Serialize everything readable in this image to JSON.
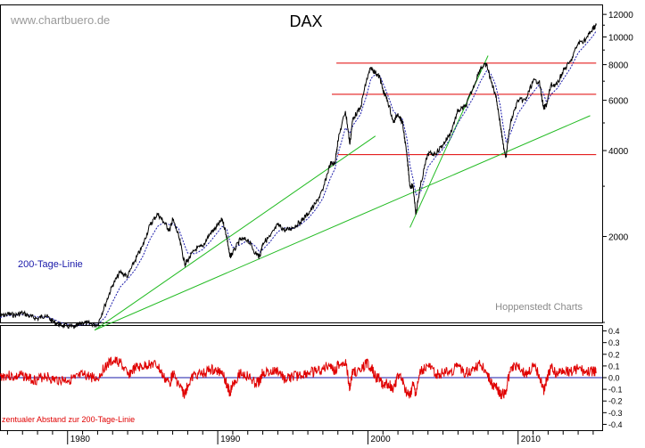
{
  "watermark": "www.chartbuero.de",
  "credit": "Hoppenstedt Charts",
  "chart_data": [
    {
      "type": "line",
      "title": "DAX",
      "yscale": "log",
      "xlim": [
        1975.5,
        2015.6
      ],
      "ylim": [
        1000,
        13000
      ],
      "y_ticks": [
        2000,
        4000,
        6000,
        8000,
        10000,
        12000
      ],
      "x_ticks": [
        1980,
        1990,
        2000,
        2010
      ],
      "grid": false,
      "series": [
        {
          "name": "",
          "color": "#000000",
          "x": [
            1975.5,
            1976.0,
            1976.5,
            1977.0,
            1977.5,
            1978.0,
            1978.5,
            1979.0,
            1979.5,
            1980.0,
            1980.5,
            1981.0,
            1981.5,
            1982.0,
            1982.5,
            1983.0,
            1983.5,
            1984.0,
            1984.5,
            1985.0,
            1985.5,
            1986.0,
            1986.4,
            1986.8,
            1987.0,
            1987.4,
            1987.8,
            1988.0,
            1988.5,
            1989.0,
            1989.5,
            1989.9,
            1990.3,
            1990.6,
            1990.8,
            1991.0,
            1991.5,
            1992.0,
            1992.5,
            1992.8,
            1993.0,
            1993.5,
            1994.0,
            1994.5,
            1995.0,
            1995.5,
            1996.0,
            1996.5,
            1997.0,
            1997.5,
            1997.8,
            1998.0,
            1998.5,
            1998.8,
            1999.0,
            1999.5,
            1999.9,
            2000.2,
            2000.5,
            2000.8,
            2001.0,
            2001.3,
            2001.7,
            2002.0,
            2002.3,
            2002.6,
            2002.8,
            2003.0,
            2003.2,
            2003.5,
            2004.0,
            2004.5,
            2005.0,
            2005.5,
            2006.0,
            2006.5,
            2007.0,
            2007.5,
            2007.9,
            2008.2,
            2008.5,
            2008.8,
            2009.0,
            2009.2,
            2009.5,
            2010.0,
            2010.5,
            2011.0,
            2011.4,
            2011.7,
            2011.9,
            2012.2,
            2012.6,
            2013.0,
            2013.5,
            2014.0,
            2014.5,
            2015.0,
            2015.2
          ],
          "y": [
            1050,
            1070,
            1060,
            1080,
            1050,
            1030,
            1060,
            1010,
            980,
            970,
            960,
            1000,
            990,
            980,
            1150,
            1350,
            1500,
            1450,
            1650,
            1850,
            2200,
            2400,
            2250,
            2100,
            2300,
            2000,
            1600,
            1650,
            1800,
            1850,
            2050,
            2150,
            2300,
            2000,
            1700,
            1750,
            1950,
            1950,
            1750,
            1700,
            1900,
            2000,
            2200,
            2100,
            2150,
            2250,
            2400,
            2600,
            2900,
            3600,
            3600,
            4300,
            5500,
            4200,
            5200,
            5600,
            7000,
            7800,
            7500,
            7200,
            6500,
            6000,
            5000,
            5400,
            5000,
            3800,
            3000,
            3000,
            2400,
            3000,
            3900,
            3900,
            4200,
            4600,
            5500,
            5700,
            6600,
            7800,
            8000,
            7000,
            6300,
            5000,
            4200,
            3800,
            5000,
            6000,
            6000,
            7000,
            7000,
            5600,
            5800,
            6800,
            6800,
            7600,
            8200,
            9500,
            9800,
            10700,
            11000
          ]
        },
        {
          "name": "200-Tage-Linie",
          "color": "#1a1aaa",
          "x": [
            1975.5,
            1976.0,
            1976.5,
            1977.0,
            1977.5,
            1978.0,
            1978.5,
            1979.0,
            1979.5,
            1980.0,
            1980.5,
            1981.0,
            1981.5,
            1982.0,
            1982.5,
            1983.0,
            1983.5,
            1984.0,
            1984.5,
            1985.0,
            1985.5,
            1986.0,
            1986.4,
            1986.8,
            1987.0,
            1987.4,
            1987.8,
            1988.0,
            1988.5,
            1989.0,
            1989.5,
            1989.9,
            1990.3,
            1990.6,
            1990.8,
            1991.0,
            1991.5,
            1992.0,
            1992.5,
            1992.8,
            1993.0,
            1993.5,
            1994.0,
            1994.5,
            1995.0,
            1995.5,
            1996.0,
            1996.5,
            1997.0,
            1997.5,
            1997.8,
            1998.0,
            1998.5,
            1998.8,
            1999.0,
            1999.5,
            1999.9,
            2000.2,
            2000.5,
            2000.8,
            2001.0,
            2001.3,
            2001.7,
            2002.0,
            2002.3,
            2002.6,
            2002.8,
            2003.0,
            2003.2,
            2003.5,
            2004.0,
            2004.5,
            2005.0,
            2005.5,
            2006.0,
            2006.5,
            2007.0,
            2007.5,
            2007.9,
            2008.2,
            2008.5,
            2008.8,
            2009.0,
            2009.2,
            2009.5,
            2010.0,
            2010.5,
            2011.0,
            2011.4,
            2011.7,
            2011.9,
            2012.2,
            2012.6,
            2013.0,
            2013.5,
            2014.0,
            2014.5,
            2015.0,
            2015.2
          ],
          "y": [
            1040,
            1055,
            1060,
            1065,
            1060,
            1045,
            1045,
            1030,
            1000,
            985,
            970,
            980,
            985,
            985,
            1040,
            1180,
            1330,
            1420,
            1530,
            1700,
            1960,
            2170,
            2240,
            2200,
            2220,
            2130,
            1860,
            1750,
            1740,
            1800,
            1920,
            2040,
            2170,
            2120,
            1930,
            1830,
            1870,
            1940,
            1850,
            1760,
            1800,
            1920,
            2080,
            2150,
            2130,
            2200,
            2310,
            2480,
            2720,
            3200,
            3450,
            3880,
            4800,
            4600,
            4900,
            5350,
            6200,
            7150,
            7400,
            7300,
            6900,
            6300,
            5500,
            5300,
            5150,
            4400,
            3550,
            3200,
            2800,
            2850,
            3500,
            3800,
            4050,
            4400,
            5000,
            5500,
            6100,
            7000,
            7600,
            7400,
            6800,
            5800,
            4900,
            4300,
            4600,
            5400,
            5900,
            6400,
            6800,
            6300,
            5900,
            6300,
            6600,
            7100,
            7800,
            8800,
            9400,
            10100,
            10500
          ]
        }
      ],
      "annotations": [
        {
          "type": "hline",
          "y": 8100,
          "x_range": [
            1997.9,
            2015.2
          ],
          "color": "#e00000"
        },
        {
          "type": "hline",
          "y": 6300,
          "x_range": [
            1997.6,
            2015.2
          ],
          "color": "#e00000"
        },
        {
          "type": "hline",
          "y": 3870,
          "x_range": [
            1998.0,
            2015.2
          ],
          "color": "#e00000"
        },
        {
          "type": "trendline",
          "from": [
            1981.8,
            940
          ],
          "to": [
            2000.5,
            4500
          ],
          "color": "#22bb22"
        },
        {
          "type": "trendline",
          "from": [
            1981.8,
            940
          ],
          "to": [
            2014.8,
            5300
          ],
          "color": "#22bb22"
        },
        {
          "type": "trendline",
          "from": [
            2002.8,
            2150
          ],
          "to": [
            2008.0,
            8600
          ],
          "color": "#22bb22"
        }
      ]
    },
    {
      "type": "line",
      "ylabel": "zentualer Abstand zur 200-Tage-Linie",
      "xlim": [
        1975.5,
        2015.6
      ],
      "ylim": [
        -0.45,
        0.45
      ],
      "y_ticks": [
        -0.4,
        -0.3,
        -0.2,
        -0.1,
        0.0,
        0.1,
        0.2,
        0.3,
        0.4
      ],
      "x_ticks": [
        1980,
        1990,
        2000,
        2010
      ],
      "grid": false,
      "zero_line": true,
      "series": [
        {
          "name": "",
          "color": "#e00000",
          "x": [
            1975.5,
            1976.0,
            1976.5,
            1977.0,
            1977.5,
            1978.0,
            1978.5,
            1979.0,
            1979.5,
            1980.0,
            1980.5,
            1981.0,
            1981.5,
            1982.0,
            1982.5,
            1983.0,
            1983.5,
            1984.0,
            1984.5,
            1985.0,
            1985.5,
            1986.0,
            1986.4,
            1986.8,
            1987.0,
            1987.4,
            1987.8,
            1988.0,
            1988.5,
            1989.0,
            1989.5,
            1989.9,
            1990.3,
            1990.6,
            1990.8,
            1991.0,
            1991.5,
            1992.0,
            1992.5,
            1992.8,
            1993.0,
            1993.5,
            1994.0,
            1994.5,
            1995.0,
            1995.5,
            1996.0,
            1996.5,
            1997.0,
            1997.5,
            1997.8,
            1998.0,
            1998.5,
            1998.8,
            1999.0,
            1999.5,
            1999.9,
            2000.2,
            2000.5,
            2000.8,
            2001.0,
            2001.3,
            2001.7,
            2002.0,
            2002.3,
            2002.6,
            2002.8,
            2003.0,
            2003.2,
            2003.5,
            2004.0,
            2004.5,
            2005.0,
            2005.5,
            2006.0,
            2006.5,
            2007.0,
            2007.5,
            2007.9,
            2008.2,
            2008.5,
            2008.8,
            2009.0,
            2009.2,
            2009.5,
            2010.0,
            2010.5,
            2011.0,
            2011.4,
            2011.7,
            2011.9,
            2012.2,
            2012.6,
            2013.0,
            2013.5,
            2014.0,
            2014.5,
            2015.0,
            2015.2
          ],
          "y": [
            0.01,
            0.02,
            0.0,
            0.02,
            -0.01,
            -0.02,
            0.02,
            -0.02,
            -0.02,
            -0.02,
            -0.01,
            0.02,
            0.01,
            -0.01,
            0.1,
            0.14,
            0.13,
            0.02,
            0.08,
            0.09,
            0.12,
            0.1,
            0.0,
            -0.05,
            0.04,
            -0.06,
            -0.15,
            -0.06,
            0.03,
            0.03,
            0.07,
            0.05,
            0.06,
            -0.06,
            -0.13,
            -0.05,
            0.04,
            0.01,
            -0.05,
            -0.03,
            0.05,
            0.04,
            0.06,
            -0.02,
            0.01,
            0.02,
            0.04,
            0.05,
            0.07,
            0.12,
            0.04,
            0.11,
            0.14,
            -0.09,
            0.06,
            0.05,
            0.13,
            0.09,
            0.01,
            -0.01,
            -0.06,
            -0.05,
            -0.09,
            0.02,
            -0.03,
            -0.14,
            -0.16,
            -0.06,
            -0.14,
            0.05,
            0.1,
            0.03,
            0.04,
            0.05,
            0.1,
            0.04,
            0.08,
            0.11,
            0.05,
            -0.05,
            -0.07,
            -0.14,
            -0.14,
            -0.12,
            0.09,
            0.11,
            0.02,
            0.09,
            0.03,
            -0.11,
            -0.02,
            0.08,
            0.03,
            0.07,
            0.05,
            0.08,
            0.04,
            0.06,
            0.05
          ]
        }
      ]
    }
  ]
}
